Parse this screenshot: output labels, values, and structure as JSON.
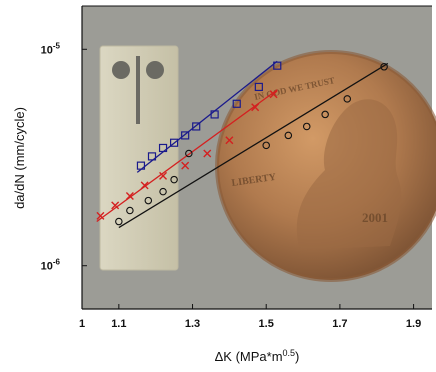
{
  "chart_data": {
    "type": "scatter",
    "xlabel": "ΔK (MPa*m",
    "xlabel_sup": "0.5",
    "xlabel_close": ")",
    "ylabel": "da/dN (mm/cycle)",
    "y_log_scale": true,
    "xlim": [
      1.0,
      1.95
    ],
    "ylim_exponent": [
      -6.2,
      -4.8
    ],
    "x_ticks": [
      {
        "value": 1.0,
        "label": "1"
      },
      {
        "value": 1.1,
        "label": "1.1"
      },
      {
        "value": 1.3,
        "label": "1.3"
      },
      {
        "value": 1.5,
        "label": "1.5"
      },
      {
        "value": 1.7,
        "label": "1.7"
      },
      {
        "value": 1.9,
        "label": "1.9"
      }
    ],
    "y_ticks": [
      {
        "exponent": -5,
        "base": "10",
        "exp_label": "-5"
      },
      {
        "exponent": -6,
        "base": "10",
        "exp_label": "-6"
      }
    ],
    "background_photo": {
      "description_colors": {
        "backdrop": "#a3a39d",
        "specimen": "#d2cdb5",
        "coin": "#b07a4e"
      },
      "coin_text": [
        "LIBERTY",
        "2001",
        "IN GOD WE TRUST"
      ]
    },
    "series": [
      {
        "marker": "square",
        "color": "#1a1a8c",
        "x": [
          1.16,
          1.19,
          1.22,
          1.25,
          1.28,
          1.31,
          1.36,
          1.42,
          1.48,
          1.53
        ],
        "y": [
          2.9e-06,
          3.2e-06,
          3.5e-06,
          3.7e-06,
          4e-06,
          4.4e-06,
          5e-06,
          5.6e-06,
          6.7e-06,
          8.4e-06
        ],
        "fit": {
          "x": [
            1.15,
            1.53
          ],
          "y": [
            2.7e-06,
            8.8e-06
          ]
        }
      },
      {
        "marker": "x",
        "color": "#d42020",
        "x": [
          1.05,
          1.09,
          1.13,
          1.17,
          1.22,
          1.28,
          1.34,
          1.4,
          1.47,
          1.52
        ],
        "y": [
          1.7e-06,
          1.9e-06,
          2.1e-06,
          2.35e-06,
          2.6e-06,
          2.9e-06,
          3.3e-06,
          3.8e-06,
          5.4e-06,
          6.2e-06
        ],
        "fit": {
          "x": [
            1.04,
            1.53
          ],
          "y": [
            1.6e-06,
            6.5e-06
          ]
        }
      },
      {
        "marker": "circle",
        "color": "#111111",
        "x": [
          1.1,
          1.13,
          1.18,
          1.22,
          1.25,
          1.29,
          1.5,
          1.56,
          1.61,
          1.66,
          1.72,
          1.82
        ],
        "y": [
          1.6e-06,
          1.8e-06,
          2e-06,
          2.2e-06,
          2.5e-06,
          3.3e-06,
          3.6e-06,
          4e-06,
          4.4e-06,
          5e-06,
          5.9e-06,
          8.3e-06
        ],
        "fit": {
          "x": [
            1.1,
            1.83
          ],
          "y": [
            1.5e-06,
            8.6e-06
          ]
        }
      }
    ]
  }
}
